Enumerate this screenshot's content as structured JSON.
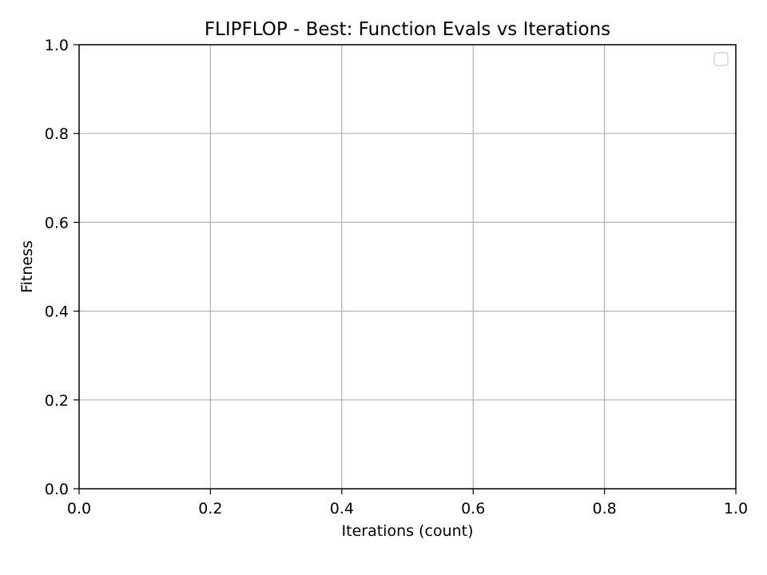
{
  "chart_data": {
    "type": "line",
    "title": "FLIPFLOP - Best: Function Evals vs Iterations",
    "xlabel": "Iterations (count)",
    "ylabel": "Fitness",
    "xlim": [
      0.0,
      1.0
    ],
    "ylim": [
      0.0,
      1.0
    ],
    "x_ticks": [
      0.0,
      0.2,
      0.4,
      0.6,
      0.8,
      1.0
    ],
    "y_ticks": [
      0.0,
      0.2,
      0.4,
      0.6,
      0.8,
      1.0
    ],
    "x_tick_labels": [
      "0.0",
      "0.2",
      "0.4",
      "0.6",
      "0.8",
      "1.0"
    ],
    "y_tick_labels": [
      "0.0",
      "0.2",
      "0.4",
      "0.6",
      "0.8",
      "1.0"
    ],
    "grid": true,
    "legend": "top-right",
    "series": []
  },
  "colors": {
    "grid": "#b0b0b0",
    "axes": "#000000",
    "legend_border": "#d0d0d0",
    "background": "#ffffff"
  }
}
